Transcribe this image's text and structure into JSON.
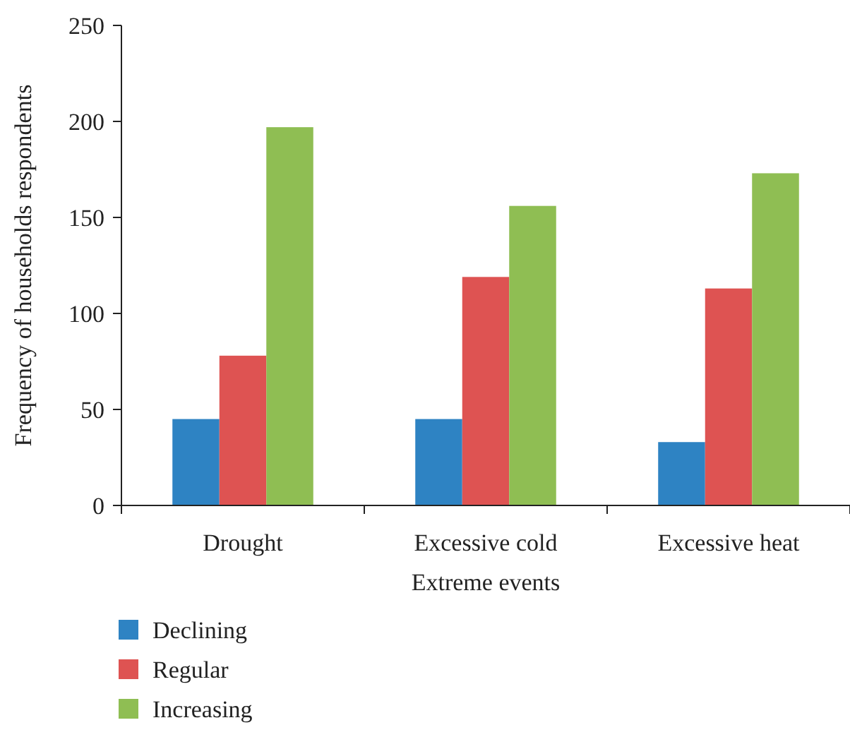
{
  "chart_data": {
    "type": "bar",
    "xlabel": "Extreme events",
    "ylabel": "Frequency of households respondents",
    "categories": [
      "Drought",
      "Excessive cold",
      "Excessive heat"
    ],
    "series": [
      {
        "name": "Declining",
        "color": "#2e83c3",
        "values": [
          45,
          45,
          33
        ]
      },
      {
        "name": "Regular",
        "color": "#de5352",
        "values": [
          78,
          119,
          113
        ]
      },
      {
        "name": "Increasing",
        "color": "#8fbe53",
        "values": [
          197,
          156,
          173
        ]
      }
    ],
    "ylim": [
      0,
      250
    ],
    "yticks": [
      0,
      50,
      100,
      150,
      200,
      250
    ],
    "grid": false,
    "legend": "bottom"
  }
}
